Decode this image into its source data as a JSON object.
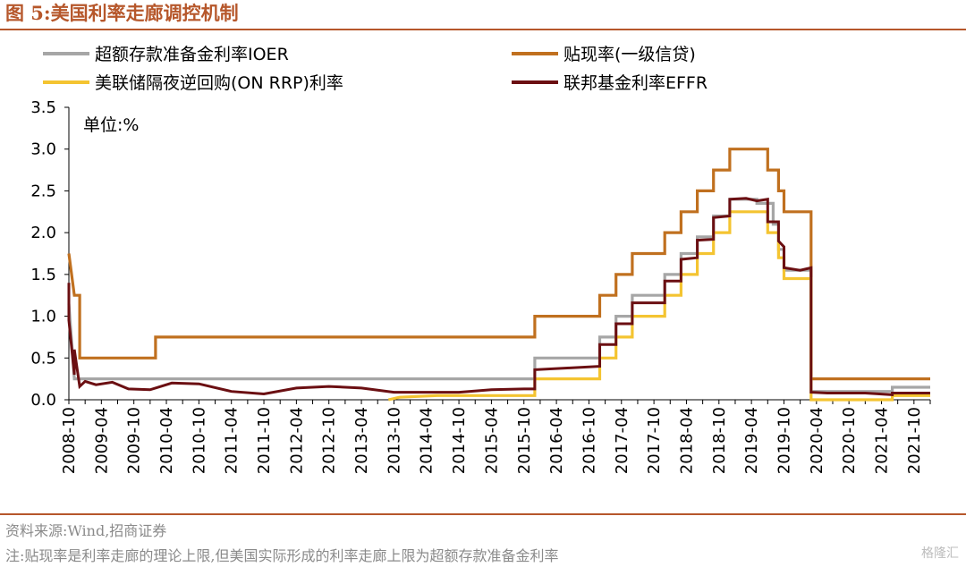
{
  "header": {
    "title": "图 5:美国利率走廊调控机制"
  },
  "footer": {
    "source": "资料来源:Wind,招商证券",
    "note": "注:贴现率是利率走廊的理论上限,但美国实际形成的利率走廊上限为超额存款准备金利率",
    "watermark": "格隆汇"
  },
  "chart_data": {
    "type": "line",
    "title": "美国利率走廊调控机制",
    "unit_label": "单位:%",
    "xlabel": "",
    "ylabel": "",
    "ylim": [
      0,
      3.5
    ],
    "yticks": [
      "0.0",
      "0.5",
      "1.0",
      "1.5",
      "2.0",
      "2.5",
      "3.0",
      "3.5"
    ],
    "xlim": [
      "2008-10",
      "2022-01"
    ],
    "xticks": [
      "2008-10",
      "2009-04",
      "2009-10",
      "2010-04",
      "2010-10",
      "2011-04",
      "2011-10",
      "2012-04",
      "2012-10",
      "2013-04",
      "2013-10",
      "2014-04",
      "2014-10",
      "2015-04",
      "2015-10",
      "2016-04",
      "2016-10",
      "2017-04",
      "2017-10",
      "2018-04",
      "2018-10",
      "2019-04",
      "2019-10",
      "2020-04",
      "2020-10",
      "2021-04",
      "2021-10"
    ],
    "grid": false,
    "legend_position": "top",
    "series": [
      {
        "name": "超额存款准备金利率IOER",
        "color": "#a6a6a6",
        "points": [
          [
            "2008-10",
            1.15
          ],
          [
            "2008-11",
            0.25
          ],
          [
            "2015-12",
            0.25
          ],
          [
            "2015-12",
            0.5
          ],
          [
            "2016-12",
            0.5
          ],
          [
            "2016-12",
            0.75
          ],
          [
            "2017-03",
            0.75
          ],
          [
            "2017-03",
            1.0
          ],
          [
            "2017-06",
            1.0
          ],
          [
            "2017-06",
            1.25
          ],
          [
            "2017-12",
            1.25
          ],
          [
            "2017-12",
            1.5
          ],
          [
            "2018-03",
            1.5
          ],
          [
            "2018-03",
            1.75
          ],
          [
            "2018-06",
            1.75
          ],
          [
            "2018-06",
            1.95
          ],
          [
            "2018-09",
            1.95
          ],
          [
            "2018-09",
            2.2
          ],
          [
            "2018-12",
            2.2
          ],
          [
            "2018-12",
            2.4
          ],
          [
            "2019-05",
            2.4
          ],
          [
            "2019-05",
            2.35
          ],
          [
            "2019-08",
            2.35
          ],
          [
            "2019-08",
            2.1
          ],
          [
            "2019-09",
            2.1
          ],
          [
            "2019-09",
            1.8
          ],
          [
            "2019-10",
            1.8
          ],
          [
            "2019-10",
            1.55
          ],
          [
            "2020-03",
            1.55
          ],
          [
            "2020-03",
            1.1
          ],
          [
            "2020-03",
            0.1
          ],
          [
            "2021-06",
            0.1
          ],
          [
            "2021-06",
            0.15
          ],
          [
            "2022-01",
            0.15
          ]
        ]
      },
      {
        "name": "贴现率(一级信贷)",
        "color": "#c0701f",
        "points": [
          [
            "2008-10",
            1.75
          ],
          [
            "2008-11",
            1.25
          ],
          [
            "2008-12",
            1.25
          ],
          [
            "2008-12",
            0.5
          ],
          [
            "2010-02",
            0.5
          ],
          [
            "2010-02",
            0.75
          ],
          [
            "2015-12",
            0.75
          ],
          [
            "2015-12",
            1.0
          ],
          [
            "2016-12",
            1.0
          ],
          [
            "2016-12",
            1.25
          ],
          [
            "2017-03",
            1.25
          ],
          [
            "2017-03",
            1.5
          ],
          [
            "2017-06",
            1.5
          ],
          [
            "2017-06",
            1.75
          ],
          [
            "2017-12",
            1.75
          ],
          [
            "2017-12",
            2.0
          ],
          [
            "2018-03",
            2.0
          ],
          [
            "2018-03",
            2.25
          ],
          [
            "2018-06",
            2.25
          ],
          [
            "2018-06",
            2.5
          ],
          [
            "2018-09",
            2.5
          ],
          [
            "2018-09",
            2.75
          ],
          [
            "2018-12",
            2.75
          ],
          [
            "2018-12",
            3.0
          ],
          [
            "2019-07",
            3.0
          ],
          [
            "2019-07",
            2.75
          ],
          [
            "2019-09",
            2.75
          ],
          [
            "2019-09",
            2.5
          ],
          [
            "2019-10",
            2.5
          ],
          [
            "2019-10",
            2.25
          ],
          [
            "2020-03",
            2.25
          ],
          [
            "2020-03",
            1.75
          ],
          [
            "2020-03",
            0.25
          ],
          [
            "2022-01",
            0.25
          ]
        ]
      },
      {
        "name": "美联储隔夜逆回购(ON RRP)利率",
        "color": "#f4c431",
        "points": [
          [
            "2013-09",
            0.0
          ],
          [
            "2013-11",
            0.03
          ],
          [
            "2014-06",
            0.05
          ],
          [
            "2015-03",
            0.05
          ],
          [
            "2015-06",
            0.05
          ],
          [
            "2015-12",
            0.05
          ],
          [
            "2015-12",
            0.25
          ],
          [
            "2016-12",
            0.25
          ],
          [
            "2016-12",
            0.5
          ],
          [
            "2017-03",
            0.5
          ],
          [
            "2017-03",
            0.75
          ],
          [
            "2017-06",
            0.75
          ],
          [
            "2017-06",
            1.0
          ],
          [
            "2017-12",
            1.0
          ],
          [
            "2017-12",
            1.25
          ],
          [
            "2018-03",
            1.25
          ],
          [
            "2018-03",
            1.5
          ],
          [
            "2018-06",
            1.5
          ],
          [
            "2018-06",
            1.75
          ],
          [
            "2018-09",
            1.75
          ],
          [
            "2018-09",
            2.0
          ],
          [
            "2018-12",
            2.0
          ],
          [
            "2018-12",
            2.25
          ],
          [
            "2019-07",
            2.25
          ],
          [
            "2019-07",
            2.0
          ],
          [
            "2019-09",
            2.0
          ],
          [
            "2019-09",
            1.7
          ],
          [
            "2019-10",
            1.7
          ],
          [
            "2019-10",
            1.45
          ],
          [
            "2020-03",
            1.45
          ],
          [
            "2020-03",
            1.0
          ],
          [
            "2020-03",
            0.0
          ],
          [
            "2021-06",
            0.0
          ],
          [
            "2021-06",
            0.05
          ],
          [
            "2022-01",
            0.05
          ]
        ]
      },
      {
        "name": "联邦基金利率EFFR",
        "color": "#6b0f12",
        "points": [
          [
            "2008-10",
            1.4
          ],
          [
            "2008-10",
            0.95
          ],
          [
            "2008-11",
            0.3
          ],
          [
            "2008-11",
            0.6
          ],
          [
            "2008-12",
            0.16
          ],
          [
            "2009-01",
            0.22
          ],
          [
            "2009-03",
            0.18
          ],
          [
            "2009-06",
            0.21
          ],
          [
            "2009-09",
            0.13
          ],
          [
            "2010-01",
            0.12
          ],
          [
            "2010-05",
            0.2
          ],
          [
            "2010-10",
            0.19
          ],
          [
            "2011-04",
            0.1
          ],
          [
            "2011-10",
            0.07
          ],
          [
            "2012-04",
            0.14
          ],
          [
            "2012-10",
            0.16
          ],
          [
            "2013-04",
            0.14
          ],
          [
            "2013-10",
            0.09
          ],
          [
            "2014-04",
            0.09
          ],
          [
            "2014-10",
            0.09
          ],
          [
            "2015-04",
            0.12
          ],
          [
            "2015-10",
            0.13
          ],
          [
            "2015-12",
            0.13
          ],
          [
            "2015-12",
            0.36
          ],
          [
            "2016-06",
            0.38
          ],
          [
            "2016-12",
            0.4
          ],
          [
            "2016-12",
            0.66
          ],
          [
            "2017-03",
            0.66
          ],
          [
            "2017-03",
            0.91
          ],
          [
            "2017-06",
            0.91
          ],
          [
            "2017-06",
            1.16
          ],
          [
            "2017-12",
            1.16
          ],
          [
            "2017-12",
            1.42
          ],
          [
            "2018-03",
            1.42
          ],
          [
            "2018-03",
            1.68
          ],
          [
            "2018-06",
            1.7
          ],
          [
            "2018-06",
            1.91
          ],
          [
            "2018-09",
            1.92
          ],
          [
            "2018-09",
            2.18
          ],
          [
            "2018-12",
            2.2
          ],
          [
            "2018-12",
            2.4
          ],
          [
            "2019-03",
            2.41
          ],
          [
            "2019-05",
            2.38
          ],
          [
            "2019-07",
            2.4
          ],
          [
            "2019-07",
            2.13
          ],
          [
            "2019-09",
            2.13
          ],
          [
            "2019-09",
            1.9
          ],
          [
            "2019-10",
            1.83
          ],
          [
            "2019-10",
            1.58
          ],
          [
            "2020-01",
            1.55
          ],
          [
            "2020-03",
            1.58
          ],
          [
            "2020-03",
            1.1
          ],
          [
            "2020-03",
            0.09
          ],
          [
            "2020-06",
            0.08
          ],
          [
            "2021-01",
            0.08
          ],
          [
            "2021-06",
            0.06
          ],
          [
            "2021-06",
            0.08
          ],
          [
            "2022-01",
            0.08
          ]
        ]
      }
    ]
  }
}
